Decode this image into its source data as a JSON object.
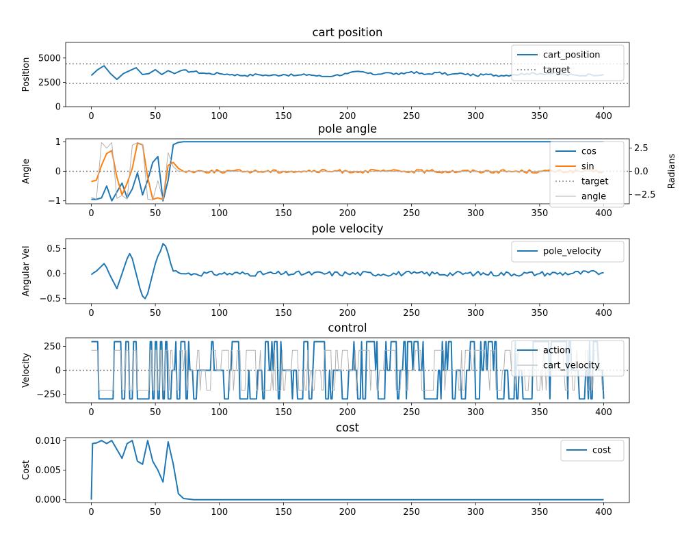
{
  "colors": {
    "blue": "#1f77b4",
    "orange": "#ff7f0e",
    "gray": "#808080",
    "light_gray": "#b0b0b0",
    "axes": "#000000"
  },
  "chart_data": [
    {
      "type": "line",
      "title": "cart position",
      "xlabel": "",
      "ylabel": "Position",
      "xlim": [
        -20,
        420
      ],
      "ylim": [
        0,
        6600
      ],
      "xticks": [
        0,
        50,
        100,
        150,
        200,
        250,
        300,
        350,
        400
      ],
      "yticks": [
        0,
        2500,
        5000
      ],
      "hlines": [
        {
          "y": 4400,
          "label": "target"
        },
        {
          "y": 2400,
          "label": "target"
        }
      ],
      "series": [
        {
          "name": "cart_position",
          "color": "#1f77b4",
          "x": [
            0,
            5,
            10,
            15,
            20,
            25,
            30,
            35,
            40,
            45,
            50,
            55,
            60,
            65,
            70,
            80,
            90,
            100,
            110,
            120,
            130,
            140,
            150,
            160,
            170,
            180,
            190,
            200,
            210,
            220,
            230,
            240,
            250,
            260,
            270,
            280,
            290,
            300,
            310,
            320,
            330,
            340,
            350,
            360,
            370,
            380,
            390,
            400
          ],
          "values": [
            3200,
            3800,
            4200,
            3400,
            2800,
            3400,
            3700,
            4000,
            3300,
            3400,
            3800,
            3300,
            3700,
            3400,
            3700,
            3600,
            3400,
            3400,
            3300,
            3200,
            3300,
            3200,
            3300,
            3200,
            3300,
            3100,
            3200,
            3400,
            3600,
            3300,
            3500,
            3300,
            3600,
            3300,
            3500,
            3300,
            3400,
            3200,
            3300,
            3200,
            3300,
            3400,
            3400,
            3400,
            3300,
            3200,
            3300,
            3300
          ]
        }
      ],
      "legend": {
        "position": "top-right",
        "entries": [
          "cart_position",
          "target"
        ]
      }
    },
    {
      "type": "line",
      "title": "pole angle",
      "xlabel": "",
      "ylabel": "Angle",
      "y2label": "Radians",
      "xlim": [
        -20,
        420
      ],
      "ylim": [
        -1.1,
        1.1
      ],
      "y2lim": [
        -3.5,
        3.5
      ],
      "xticks": [
        0,
        50,
        100,
        150,
        200,
        250,
        300,
        350,
        400
      ],
      "yticks": [
        -1,
        0,
        1
      ],
      "y2ticks": [
        -2.5,
        0.0,
        2.5
      ],
      "hlines": [
        {
          "y": 0,
          "label": "target"
        }
      ],
      "series": [
        {
          "name": "cos",
          "color": "#1f77b4",
          "x": [
            0,
            4,
            8,
            12,
            16,
            20,
            24,
            28,
            32,
            36,
            40,
            44,
            48,
            52,
            56,
            60,
            64,
            68,
            72,
            80,
            100,
            150,
            200,
            250,
            300,
            350,
            400
          ],
          "values": [
            -0.95,
            -0.95,
            -0.9,
            -0.5,
            -1.0,
            -0.7,
            -0.4,
            -0.9,
            -0.6,
            -0.05,
            -0.8,
            -0.3,
            0.3,
            0.5,
            -1.0,
            -0.3,
            0.9,
            0.98,
            1.0,
            1.0,
            1.0,
            1.0,
            1.0,
            1.0,
            1.0,
            1.0,
            1.0
          ]
        },
        {
          "name": "sin",
          "color": "#ff7f0e",
          "x": [
            0,
            4,
            8,
            12,
            16,
            20,
            24,
            28,
            32,
            36,
            40,
            44,
            48,
            52,
            56,
            60,
            64,
            68,
            72,
            100,
            150,
            200,
            250,
            300,
            350,
            400
          ],
          "values": [
            -0.35,
            -0.3,
            0.2,
            0.6,
            0.7,
            -0.2,
            -0.8,
            -0.4,
            0.1,
            0.95,
            0.9,
            -0.2,
            -0.95,
            -0.9,
            -0.95,
            0.2,
            0.3,
            0.1,
            0.0,
            0.0,
            0.0,
            0.0,
            0.0,
            0.0,
            0.0,
            0.0
          ]
        },
        {
          "name": "angle",
          "color": "#b0b0b0",
          "axis": "right",
          "x": [
            0,
            4,
            8,
            12,
            16,
            20,
            24,
            28,
            32,
            36,
            40,
            44,
            48,
            52,
            56,
            60,
            64,
            68,
            72,
            100,
            150,
            200,
            250,
            300,
            350,
            400
          ],
          "values": [
            -2.8,
            -3.0,
            3.1,
            2.5,
            3.1,
            -2.9,
            -2.6,
            -3.0,
            2.8,
            3.1,
            2.9,
            -3.0,
            -3.1,
            -1.0,
            -3.1,
            2.0,
            0.5,
            0.0,
            0.0,
            0.0,
            0.0,
            0.0,
            0.0,
            0.0,
            0.0,
            0.0
          ]
        }
      ],
      "legend": {
        "position": "right",
        "entries": [
          "cos",
          "sin",
          "target",
          "angle"
        ]
      }
    },
    {
      "type": "line",
      "title": "pole velocity",
      "xlabel": "",
      "ylabel": "Angular Vel",
      "xlim": [
        -20,
        420
      ],
      "ylim": [
        -0.6,
        0.7
      ],
      "xticks": [
        0,
        50,
        100,
        150,
        200,
        250,
        300,
        350,
        400
      ],
      "yticks": [
        -0.5,
        0.0,
        0.5
      ],
      "series": [
        {
          "name": "pole_velocity",
          "color": "#1f77b4",
          "x": [
            0,
            2,
            4,
            6,
            8,
            10,
            12,
            14,
            16,
            18,
            20,
            22,
            24,
            26,
            28,
            30,
            32,
            34,
            36,
            38,
            40,
            42,
            44,
            46,
            48,
            50,
            52,
            54,
            56,
            58,
            60,
            62,
            64,
            66,
            68,
            70,
            72,
            80,
            100,
            150,
            200,
            250,
            300,
            350,
            400
          ],
          "values": [
            -0.02,
            0.02,
            0.05,
            0.1,
            0.15,
            0.2,
            0.12,
            0.0,
            -0.1,
            -0.2,
            -0.3,
            -0.15,
            0.0,
            0.15,
            0.3,
            0.4,
            0.3,
            0.1,
            -0.1,
            -0.3,
            -0.45,
            -0.5,
            -0.4,
            -0.2,
            0.0,
            0.2,
            0.35,
            0.45,
            0.6,
            0.55,
            0.4,
            0.2,
            0.05,
            0.06,
            0.02,
            0.0,
            0.0,
            0.0,
            0.0,
            0.0,
            0.0,
            0.0,
            0.0,
            0.0,
            0.02
          ]
        }
      ],
      "legend": {
        "position": "top-right",
        "entries": [
          "pole_velocity"
        ]
      }
    },
    {
      "type": "line",
      "title": "control",
      "xlabel": "",
      "ylabel": "Velocity",
      "xlim": [
        -20,
        420
      ],
      "ylim": [
        -340,
        340
      ],
      "xticks": [
        0,
        50,
        100,
        150,
        200,
        250,
        300,
        350,
        400
      ],
      "yticks": [
        -250,
        0,
        250
      ],
      "hlines": [
        {
          "y": 0,
          "label": "target"
        }
      ],
      "series": [
        {
          "name": "action",
          "color": "#1f77b4",
          "values_range": [
            -300,
            300
          ],
          "pattern": "bang-bang switching between -300, 0 and 300 across x = 0 to 400"
        },
        {
          "name": "cart_velocity",
          "color": "#b0b0b0",
          "values_range": [
            -300,
            300
          ],
          "pattern": "follows action with lag"
        }
      ],
      "legend": {
        "position": "top-right",
        "entries": [
          "action",
          "cart_velocity"
        ]
      }
    },
    {
      "type": "line",
      "title": "cost",
      "xlabel": "",
      "ylabel": "Cost",
      "xlim": [
        -20,
        420
      ],
      "ylim": [
        -0.0005,
        0.0105
      ],
      "xticks": [
        0,
        50,
        100,
        150,
        200,
        250,
        300,
        350,
        400
      ],
      "yticks": [
        "0.000",
        "0.005",
        "0.010"
      ],
      "series": [
        {
          "name": "cost",
          "color": "#1f77b4",
          "x": [
            0,
            1,
            4,
            8,
            12,
            16,
            20,
            24,
            28,
            32,
            36,
            40,
            44,
            48,
            52,
            56,
            60,
            64,
            68,
            72,
            80,
            100,
            150,
            200,
            250,
            300,
            350,
            400
          ],
          "values": [
            0.0,
            0.0095,
            0.0096,
            0.01,
            0.0095,
            0.01,
            0.0085,
            0.007,
            0.0095,
            0.01,
            0.0065,
            0.006,
            0.01,
            0.0065,
            0.005,
            0.003,
            0.0098,
            0.006,
            0.001,
            0.0002,
            0.0,
            0.0,
            0.0,
            0.0,
            0.0,
            0.0,
            0.0,
            0.0
          ]
        }
      ],
      "legend": {
        "position": "top-right",
        "entries": [
          "cost"
        ]
      }
    }
  ]
}
